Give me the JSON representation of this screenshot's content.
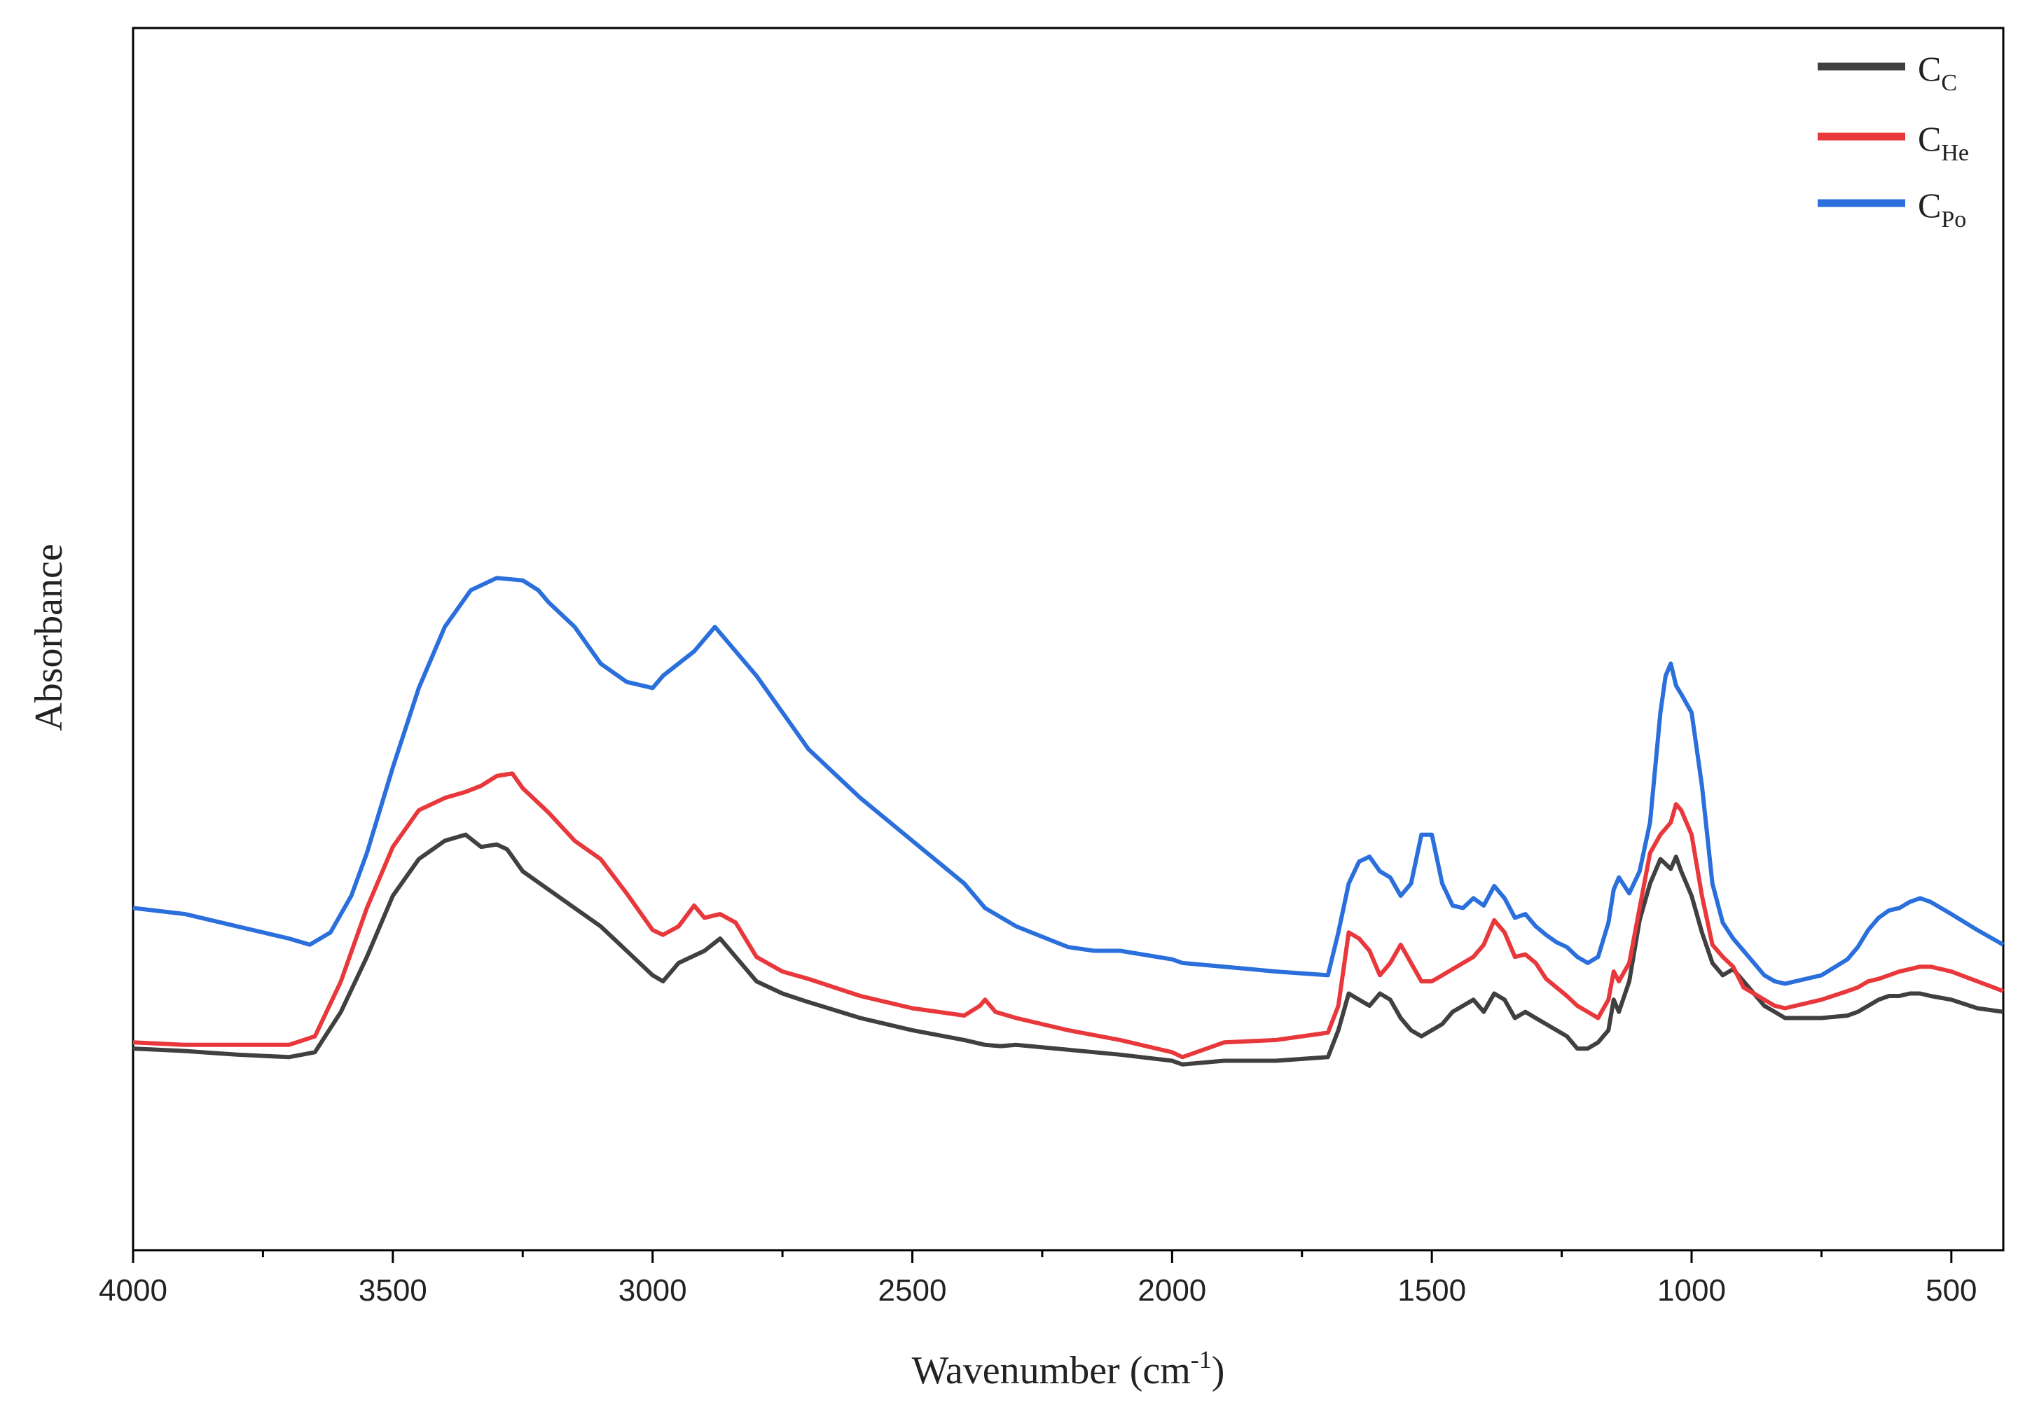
{
  "chart_data": {
    "type": "line",
    "xlabel": "Wavenumber (cm",
    "xlabel_sup": "-1",
    "xlabel_close": ")",
    "ylabel": "Absorbance",
    "xlim": [
      4000,
      400
    ],
    "ylim": [
      0,
      1
    ],
    "x_reversed": true,
    "y_ticks_shown": false,
    "grid": false,
    "legend_placement": "top-right",
    "x_ticks": [
      4000,
      3500,
      3000,
      2500,
      2000,
      1500,
      1000,
      500
    ],
    "x_tick_labels": [
      "4000",
      "3500",
      "3000",
      "2500",
      "2000",
      "1500",
      "1000",
      "500"
    ],
    "x_minor_ticks": [
      3750,
      3250,
      2750,
      2250,
      1750,
      1250,
      750
    ],
    "series": [
      {
        "name_main": "C",
        "name_sub": "C",
        "color": "#404040",
        "x": [
          4000,
          3900,
          3800,
          3700,
          3650,
          3600,
          3550,
          3500,
          3450,
          3400,
          3360,
          3330,
          3300,
          3280,
          3250,
          3200,
          3150,
          3100,
          3050,
          3000,
          2980,
          2950,
          2900,
          2870,
          2840,
          2800,
          2750,
          2700,
          2600,
          2500,
          2400,
          2360,
          2330,
          2300,
          2200,
          2100,
          2000,
          1980,
          1900,
          1800,
          1700,
          1680,
          1660,
          1640,
          1620,
          1600,
          1580,
          1560,
          1540,
          1520,
          1500,
          1480,
          1460,
          1440,
          1420,
          1400,
          1380,
          1360,
          1340,
          1320,
          1300,
          1280,
          1260,
          1240,
          1220,
          1200,
          1180,
          1160,
          1150,
          1140,
          1120,
          1100,
          1080,
          1060,
          1040,
          1030,
          1020,
          1000,
          980,
          960,
          940,
          920,
          900,
          880,
          860,
          840,
          820,
          800,
          750,
          700,
          680,
          660,
          640,
          620,
          600,
          580,
          560,
          540,
          500,
          450,
          400
        ],
        "y": [
          0.165,
          0.163,
          0.16,
          0.158,
          0.162,
          0.195,
          0.24,
          0.29,
          0.32,
          0.335,
          0.34,
          0.33,
          0.332,
          0.328,
          0.31,
          0.295,
          0.28,
          0.265,
          0.245,
          0.225,
          0.22,
          0.235,
          0.245,
          0.255,
          0.24,
          0.22,
          0.21,
          0.203,
          0.19,
          0.18,
          0.172,
          0.168,
          0.167,
          0.168,
          0.164,
          0.16,
          0.155,
          0.152,
          0.155,
          0.155,
          0.158,
          0.18,
          0.21,
          0.205,
          0.2,
          0.21,
          0.205,
          0.19,
          0.18,
          0.175,
          0.18,
          0.185,
          0.195,
          0.2,
          0.205,
          0.195,
          0.21,
          0.205,
          0.19,
          0.195,
          0.19,
          0.185,
          0.18,
          0.175,
          0.165,
          0.165,
          0.17,
          0.18,
          0.205,
          0.195,
          0.22,
          0.27,
          0.3,
          0.32,
          0.312,
          0.322,
          0.31,
          0.29,
          0.26,
          0.235,
          0.225,
          0.23,
          0.22,
          0.21,
          0.2,
          0.195,
          0.19,
          0.19,
          0.19,
          0.192,
          0.195,
          0.2,
          0.205,
          0.208,
          0.208,
          0.21,
          0.21,
          0.208,
          0.205,
          0.198,
          0.195
        ]
      },
      {
        "name_main": "C",
        "name_sub": "He",
        "color": "#e8383b",
        "x": [
          4000,
          3900,
          3800,
          3700,
          3650,
          3600,
          3550,
          3500,
          3450,
          3400,
          3360,
          3330,
          3300,
          3270,
          3250,
          3200,
          3150,
          3100,
          3050,
          3000,
          2980,
          2950,
          2920,
          2900,
          2870,
          2840,
          2800,
          2750,
          2700,
          2600,
          2500,
          2400,
          2370,
          2360,
          2340,
          2300,
          2200,
          2100,
          2000,
          1980,
          1900,
          1800,
          1700,
          1680,
          1660,
          1640,
          1620,
          1600,
          1580,
          1560,
          1540,
          1520,
          1500,
          1480,
          1460,
          1440,
          1420,
          1400,
          1380,
          1360,
          1340,
          1320,
          1300,
          1280,
          1260,
          1240,
          1220,
          1200,
          1180,
          1160,
          1150,
          1140,
          1120,
          1100,
          1080,
          1060,
          1040,
          1030,
          1020,
          1000,
          980,
          960,
          940,
          920,
          900,
          880,
          860,
          840,
          820,
          800,
          750,
          700,
          680,
          660,
          640,
          620,
          600,
          580,
          560,
          540,
          500,
          450,
          400
        ],
        "y": [
          0.17,
          0.168,
          0.168,
          0.168,
          0.175,
          0.22,
          0.28,
          0.33,
          0.36,
          0.37,
          0.375,
          0.38,
          0.388,
          0.39,
          0.378,
          0.358,
          0.335,
          0.32,
          0.292,
          0.262,
          0.258,
          0.265,
          0.282,
          0.272,
          0.275,
          0.268,
          0.24,
          0.228,
          0.222,
          0.208,
          0.198,
          0.192,
          0.2,
          0.205,
          0.195,
          0.19,
          0.18,
          0.172,
          0.162,
          0.158,
          0.17,
          0.172,
          0.178,
          0.2,
          0.26,
          0.255,
          0.245,
          0.225,
          0.235,
          0.25,
          0.235,
          0.22,
          0.22,
          0.225,
          0.23,
          0.235,
          0.24,
          0.25,
          0.27,
          0.26,
          0.24,
          0.242,
          0.235,
          0.222,
          0.215,
          0.208,
          0.2,
          0.195,
          0.19,
          0.205,
          0.228,
          0.22,
          0.235,
          0.28,
          0.325,
          0.34,
          0.35,
          0.365,
          0.36,
          0.34,
          0.29,
          0.25,
          0.24,
          0.232,
          0.215,
          0.21,
          0.205,
          0.2,
          0.198,
          0.2,
          0.205,
          0.212,
          0.215,
          0.22,
          0.222,
          0.225,
          0.228,
          0.23,
          0.232,
          0.232,
          0.228,
          0.22,
          0.212
        ]
      },
      {
        "name_main": "C",
        "name_sub": "Po",
        "color": "#2a6fdc",
        "x": [
          4000,
          3900,
          3800,
          3700,
          3660,
          3620,
          3580,
          3550,
          3500,
          3450,
          3400,
          3350,
          3300,
          3250,
          3220,
          3200,
          3150,
          3100,
          3050,
          3000,
          2980,
          2950,
          2920,
          2900,
          2880,
          2860,
          2800,
          2750,
          2700,
          2600,
          2500,
          2400,
          2360,
          2300,
          2200,
          2150,
          2100,
          2000,
          1980,
          1900,
          1800,
          1700,
          1680,
          1660,
          1640,
          1620,
          1600,
          1580,
          1560,
          1540,
          1520,
          1500,
          1480,
          1460,
          1440,
          1420,
          1400,
          1380,
          1360,
          1340,
          1320,
          1300,
          1280,
          1260,
          1240,
          1220,
          1200,
          1180,
          1160,
          1150,
          1140,
          1120,
          1100,
          1080,
          1060,
          1050,
          1040,
          1030,
          1020,
          1000,
          980,
          960,
          940,
          920,
          900,
          880,
          860,
          840,
          820,
          800,
          750,
          700,
          680,
          660,
          640,
          620,
          600,
          580,
          560,
          540,
          500,
          450,
          400
        ],
        "y": [
          0.28,
          0.275,
          0.265,
          0.255,
          0.25,
          0.26,
          0.29,
          0.325,
          0.395,
          0.46,
          0.51,
          0.54,
          0.55,
          0.548,
          0.54,
          0.53,
          0.51,
          0.48,
          0.465,
          0.46,
          0.47,
          0.48,
          0.49,
          0.5,
          0.51,
          0.5,
          0.47,
          0.44,
          0.41,
          0.37,
          0.335,
          0.3,
          0.28,
          0.265,
          0.248,
          0.245,
          0.245,
          0.238,
          0.235,
          0.232,
          0.228,
          0.225,
          0.26,
          0.3,
          0.318,
          0.322,
          0.31,
          0.305,
          0.29,
          0.3,
          0.34,
          0.34,
          0.3,
          0.282,
          0.28,
          0.288,
          0.282,
          0.298,
          0.288,
          0.272,
          0.275,
          0.265,
          0.258,
          0.252,
          0.248,
          0.24,
          0.235,
          0.24,
          0.268,
          0.295,
          0.305,
          0.292,
          0.31,
          0.35,
          0.44,
          0.47,
          0.48,
          0.462,
          0.455,
          0.44,
          0.38,
          0.3,
          0.268,
          0.255,
          0.245,
          0.235,
          0.225,
          0.22,
          0.218,
          0.22,
          0.225,
          0.238,
          0.248,
          0.262,
          0.272,
          0.278,
          0.28,
          0.285,
          0.288,
          0.285,
          0.275,
          0.262,
          0.25
        ]
      }
    ]
  }
}
